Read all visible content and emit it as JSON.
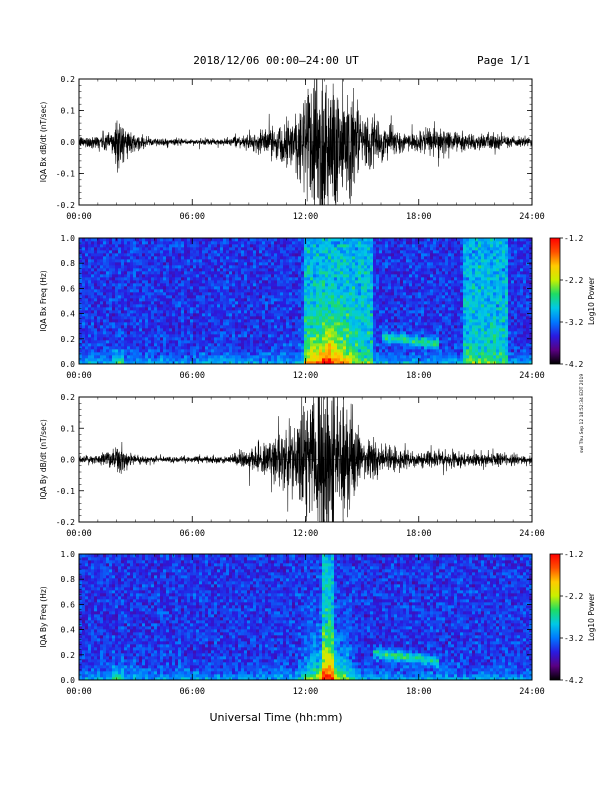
{
  "header": {
    "title": "2018/12/06  00:00–24:00 UT",
    "page": "Page 1/1"
  },
  "footer": {
    "xlabel": "Universal Time (hh:mm)",
    "stamp": "swl Thu Sep 12 18:52:34 EDT 2019"
  },
  "colors": {
    "trace": "#000000",
    "colormap": [
      "#000000",
      "#5a0082",
      "#2a1be0",
      "#0078ff",
      "#00c8e6",
      "#1edc64",
      "#c8f000",
      "#ffcc00",
      "#ff5000",
      "#ff0000"
    ]
  },
  "colorbar": {
    "label": "Log10 Power",
    "ticks": [
      "-1.2",
      "-2.2",
      "-3.2",
      "-4.2"
    ],
    "range": [
      -4.2,
      -1.2
    ]
  },
  "chart_data": [
    {
      "type": "line",
      "ylabel": "IQA Bx dB/dt (nT/sec)",
      "xticks": [
        "00:00",
        "06:00",
        "12:00",
        "18:00",
        "24:00"
      ],
      "yticks": [
        "0.2",
        "0.1",
        "0.0",
        "-0.1",
        "-0.2"
      ],
      "xlim": [
        0,
        24
      ],
      "ylim": [
        -0.2,
        0.2
      ],
      "envelope_hours": [
        0,
        1,
        1.8,
        2,
        2.3,
        3,
        4,
        6,
        8,
        9,
        10,
        11,
        11.5,
        12,
        12.5,
        13,
        13.5,
        14,
        14.5,
        15,
        15.5,
        16,
        17,
        18,
        19,
        20,
        21,
        22,
        23,
        24
      ],
      "envelope_amplitude": [
        0.015,
        0.02,
        0.04,
        0.09,
        0.05,
        0.02,
        0.012,
        0.008,
        0.01,
        0.02,
        0.04,
        0.06,
        0.1,
        0.16,
        0.25,
        0.25,
        0.2,
        0.18,
        0.15,
        0.06,
        0.08,
        0.05,
        0.03,
        0.025,
        0.045,
        0.03,
        0.02,
        0.025,
        0.015,
        0.012
      ]
    },
    {
      "type": "heatmap",
      "ylabel": "IQA Bx Freq (Hz)",
      "xticks": [
        "00:00",
        "06:00",
        "12:00",
        "18:00",
        "24:00"
      ],
      "yticks": [
        "1.0",
        "0.8",
        "0.6",
        "0.4",
        "0.2",
        "0.0"
      ],
      "xlim": [
        0,
        24
      ],
      "ylim": [
        0,
        1.0
      ],
      "bright_bands_hours": [
        [
          12.0,
          15.5
        ],
        [
          20.3,
          22.8
        ]
      ],
      "lowfreq_feature_hours": [
        16.0,
        19.0
      ]
    },
    {
      "type": "line",
      "ylabel": "IQA By dB/dt (nT/sec)",
      "xticks": [
        "00:00",
        "06:00",
        "12:00",
        "18:00",
        "24:00"
      ],
      "yticks": [
        "0.2",
        "0.1",
        "0.0",
        "-0.1",
        "-0.2"
      ],
      "xlim": [
        0,
        24
      ],
      "ylim": [
        -0.2,
        0.2
      ],
      "envelope_hours": [
        0,
        1,
        1.8,
        2,
        2.3,
        3,
        4,
        6,
        8,
        9,
        10,
        11,
        11.5,
        12,
        12.5,
        13,
        13.5,
        14,
        14.5,
        15,
        15.5,
        16,
        17,
        18,
        19,
        20,
        21,
        22,
        23,
        24
      ],
      "envelope_amplitude": [
        0.01,
        0.012,
        0.03,
        0.06,
        0.03,
        0.012,
        0.01,
        0.008,
        0.012,
        0.03,
        0.06,
        0.09,
        0.12,
        0.16,
        0.22,
        0.25,
        0.22,
        0.16,
        0.12,
        0.05,
        0.06,
        0.04,
        0.03,
        0.02,
        0.03,
        0.025,
        0.02,
        0.02,
        0.015,
        0.012
      ]
    },
    {
      "type": "heatmap",
      "ylabel": "IQA By Freq (Hz)",
      "xticks": [
        "00:00",
        "06:00",
        "12:00",
        "18:00",
        "24:00"
      ],
      "yticks": [
        "1.0",
        "0.8",
        "0.6",
        "0.4",
        "0.2",
        "0.0"
      ],
      "xlim": [
        0,
        24
      ],
      "ylim": [
        0,
        1.0
      ],
      "bright_bands_hours": [
        [
          12.8,
          13.5
        ]
      ],
      "lowfreq_feature_hours": [
        15.5,
        19.0
      ]
    }
  ]
}
